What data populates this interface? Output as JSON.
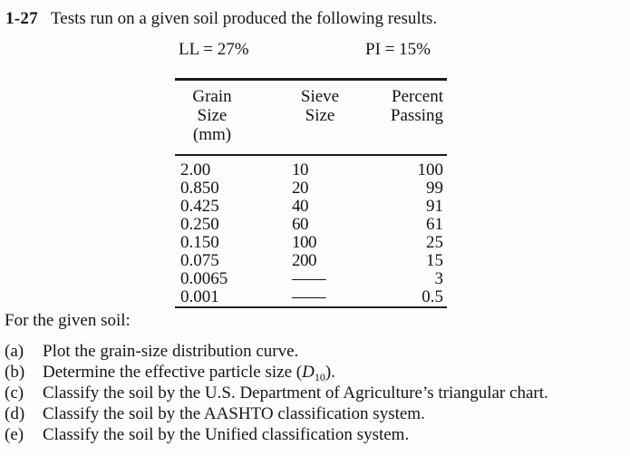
{
  "problem": {
    "number": "1-27",
    "statement": "Tests run on a given soil produced the following results.",
    "liquid_limit": "LL = 27%",
    "plasticity_index": "PI = 15%"
  },
  "table": {
    "columns": [
      {
        "line1": "Grain Size",
        "line2": "(mm)"
      },
      {
        "line1": "Sieve",
        "line2": "Size"
      },
      {
        "line1": "Percent",
        "line2": "Passing"
      }
    ],
    "rows": [
      [
        "2.00",
        "10",
        "100"
      ],
      [
        "0.850",
        "20",
        "99"
      ],
      [
        "0.425",
        "40",
        "91"
      ],
      [
        "0.250",
        "60",
        "61"
      ],
      [
        "0.150",
        "100",
        "25"
      ],
      [
        "0.075",
        "200",
        "15"
      ],
      [
        "0.0065",
        "——",
        "3"
      ],
      [
        "0.001",
        "——",
        "0.5"
      ]
    ]
  },
  "instructions": {
    "intro": "For the given soil:",
    "items": [
      {
        "label": "(a)",
        "text": "Plot the grain-size distribution curve."
      },
      {
        "label": "(b)",
        "text_before": "Determine the effective particle size (",
        "variable": "D",
        "subscript": "10",
        "text_after": ")."
      },
      {
        "label": "(c)",
        "text": "Classify the soil by the U.S. Department of Agriculture’s triangular chart."
      },
      {
        "label": "(d)",
        "text": "Classify the soil by the AASHTO classification system."
      },
      {
        "label": "(e)",
        "text": "Classify the soil by the Unified classification system."
      }
    ]
  }
}
